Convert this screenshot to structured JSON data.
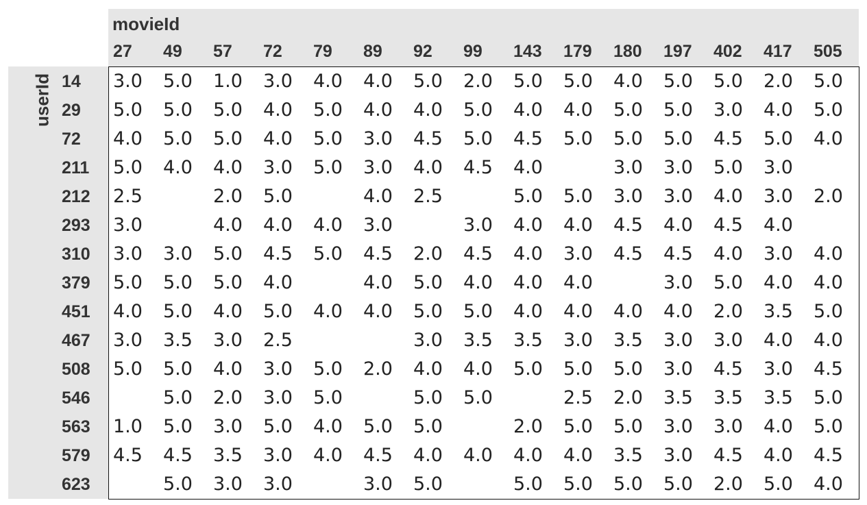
{
  "chart_data": {
    "type": "table",
    "column_index_name": "movieId",
    "row_index_name": "userId",
    "columns": [
      "27",
      "49",
      "57",
      "72",
      "79",
      "89",
      "92",
      "99",
      "143",
      "179",
      "180",
      "197",
      "402",
      "417",
      "505"
    ],
    "rows": [
      {
        "id": "14",
        "values": [
          "3.0",
          "5.0",
          "1.0",
          "3.0",
          "4.0",
          "4.0",
          "5.0",
          "2.0",
          "5.0",
          "5.0",
          "4.0",
          "5.0",
          "5.0",
          "2.0",
          "5.0"
        ]
      },
      {
        "id": "29",
        "values": [
          "5.0",
          "5.0",
          "5.0",
          "4.0",
          "5.0",
          "4.0",
          "4.0",
          "5.0",
          "4.0",
          "4.0",
          "5.0",
          "5.0",
          "3.0",
          "4.0",
          "5.0"
        ]
      },
      {
        "id": "72",
        "values": [
          "4.0",
          "5.0",
          "5.0",
          "4.0",
          "5.0",
          "3.0",
          "4.5",
          "5.0",
          "4.5",
          "5.0",
          "5.0",
          "5.0",
          "4.5",
          "5.0",
          "4.0"
        ]
      },
      {
        "id": "211",
        "values": [
          "5.0",
          "4.0",
          "4.0",
          "3.0",
          "5.0",
          "3.0",
          "4.0",
          "4.5",
          "4.0",
          null,
          "3.0",
          "3.0",
          "5.0",
          "3.0",
          null
        ]
      },
      {
        "id": "212",
        "values": [
          "2.5",
          null,
          "2.0",
          "5.0",
          null,
          "4.0",
          "2.5",
          null,
          "5.0",
          "5.0",
          "3.0",
          "3.0",
          "4.0",
          "3.0",
          "2.0"
        ]
      },
      {
        "id": "293",
        "values": [
          "3.0",
          null,
          "4.0",
          "4.0",
          "4.0",
          "3.0",
          null,
          "3.0",
          "4.0",
          "4.0",
          "4.5",
          "4.0",
          "4.5",
          "4.0",
          null
        ]
      },
      {
        "id": "310",
        "values": [
          "3.0",
          "3.0",
          "5.0",
          "4.5",
          "5.0",
          "4.5",
          "2.0",
          "4.5",
          "4.0",
          "3.0",
          "4.5",
          "4.5",
          "4.0",
          "3.0",
          "4.0"
        ]
      },
      {
        "id": "379",
        "values": [
          "5.0",
          "5.0",
          "5.0",
          "4.0",
          null,
          "4.0",
          "5.0",
          "4.0",
          "4.0",
          "4.0",
          null,
          "3.0",
          "5.0",
          "4.0",
          "4.0"
        ]
      },
      {
        "id": "451",
        "values": [
          "4.0",
          "5.0",
          "4.0",
          "5.0",
          "4.0",
          "4.0",
          "5.0",
          "5.0",
          "4.0",
          "4.0",
          "4.0",
          "4.0",
          "2.0",
          "3.5",
          "5.0"
        ]
      },
      {
        "id": "467",
        "values": [
          "3.0",
          "3.5",
          "3.0",
          "2.5",
          null,
          null,
          "3.0",
          "3.5",
          "3.5",
          "3.0",
          "3.5",
          "3.0",
          "3.0",
          "4.0",
          "4.0"
        ]
      },
      {
        "id": "508",
        "values": [
          "5.0",
          "5.0",
          "4.0",
          "3.0",
          "5.0",
          "2.0",
          "4.0",
          "4.0",
          "5.0",
          "5.0",
          "5.0",
          "3.0",
          "4.5",
          "3.0",
          "4.5"
        ]
      },
      {
        "id": "546",
        "values": [
          null,
          "5.0",
          "2.0",
          "3.0",
          "5.0",
          null,
          "5.0",
          "5.0",
          null,
          "2.5",
          "2.0",
          "3.5",
          "3.5",
          "3.5",
          "5.0"
        ]
      },
      {
        "id": "563",
        "values": [
          "1.0",
          "5.0",
          "3.0",
          "5.0",
          "4.0",
          "5.0",
          "5.0",
          null,
          "2.0",
          "5.0",
          "5.0",
          "3.0",
          "3.0",
          "4.0",
          "5.0"
        ]
      },
      {
        "id": "579",
        "values": [
          "4.5",
          "4.5",
          "3.5",
          "3.0",
          "4.0",
          "4.5",
          "4.0",
          "4.0",
          "4.0",
          "4.0",
          "3.5",
          "3.0",
          "4.5",
          "4.0",
          "4.5"
        ]
      },
      {
        "id": "623",
        "values": [
          null,
          "5.0",
          "3.0",
          "3.0",
          null,
          "3.0",
          "5.0",
          null,
          "5.0",
          "5.0",
          "5.0",
          "5.0",
          "2.0",
          "5.0",
          "4.0"
        ]
      }
    ],
    "header_background": "#e6e6e6"
  }
}
